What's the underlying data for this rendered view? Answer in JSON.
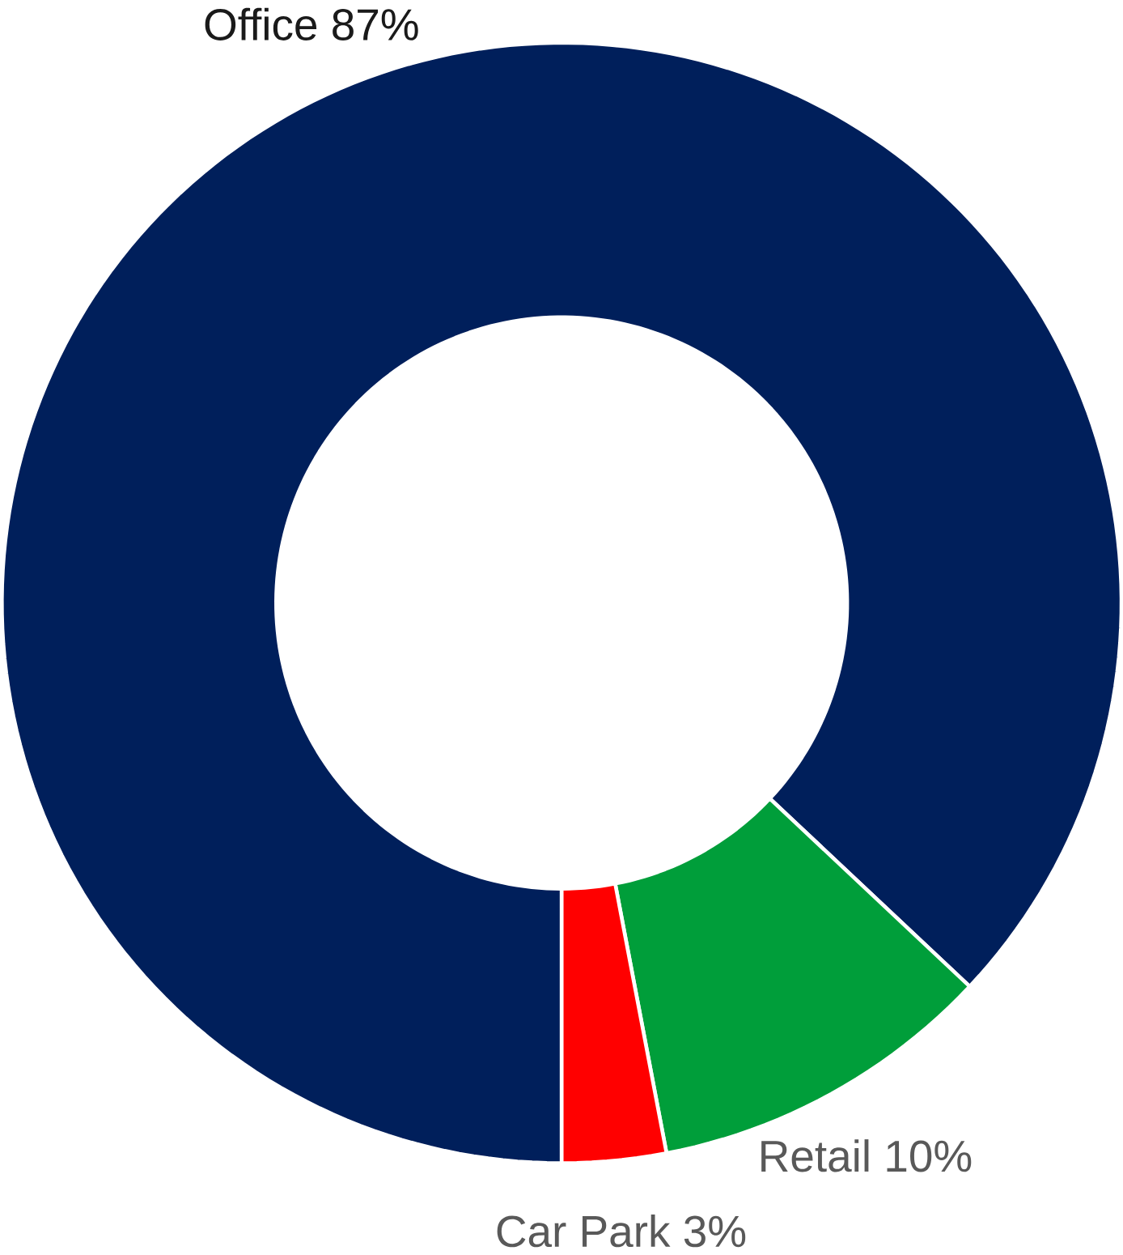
{
  "chart_data": {
    "type": "donut",
    "categories": [
      "Office",
      "Retail",
      "Car Park"
    ],
    "values": [
      87,
      10,
      3
    ],
    "value_labels": [
      "87%",
      "10%",
      "3%"
    ],
    "colors": [
      "#001f5b",
      "#009e3a",
      "#ff0000"
    ]
  }
}
